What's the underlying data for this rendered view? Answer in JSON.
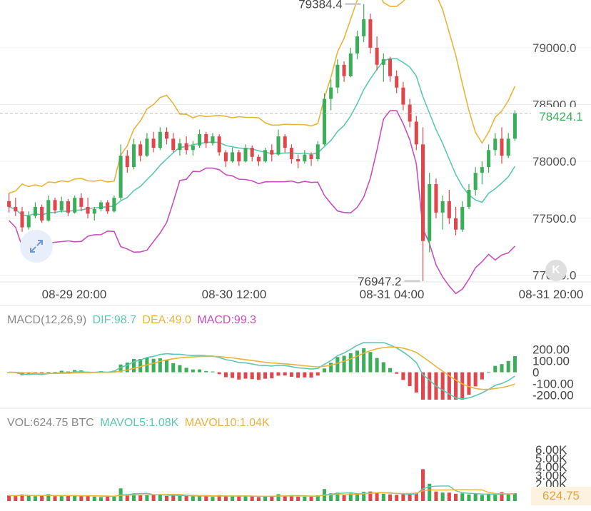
{
  "chart_data": {
    "type": "candlestick",
    "main": {
      "y_ticks": [
        "79000.0",
        "78500.0",
        "78000.0",
        "77500.0",
        "77000.0"
      ],
      "x_ticks": [
        "08-29 20:00",
        "08-30 12:00",
        "08-31 04:00",
        "08-31 20:00"
      ],
      "high_label": "79384.4",
      "low_label": "76947.2",
      "last_price": "78424.1",
      "ylim": [
        76940,
        79420
      ],
      "ohlc": [
        [
          77650,
          77720,
          77550,
          77600
        ],
        [
          77600,
          77680,
          77520,
          77560
        ],
        [
          77560,
          77600,
          77380,
          77420
        ],
        [
          77420,
          77560,
          77400,
          77520
        ],
        [
          77520,
          77640,
          77500,
          77600
        ],
        [
          77600,
          77620,
          77460,
          77480
        ],
        [
          77480,
          77700,
          77470,
          77660
        ],
        [
          77660,
          77680,
          77540,
          77570
        ],
        [
          77570,
          77690,
          77550,
          77650
        ],
        [
          77650,
          77670,
          77520,
          77550
        ],
        [
          77550,
          77700,
          77540,
          77680
        ],
        [
          77680,
          77720,
          77560,
          77600
        ],
        [
          77600,
          77680,
          77500,
          77540
        ],
        [
          77540,
          77600,
          77480,
          77580
        ],
        [
          77580,
          77660,
          77560,
          77640
        ],
        [
          77640,
          77660,
          77540,
          77560
        ],
        [
          77560,
          77700,
          77550,
          77680
        ],
        [
          77680,
          78150,
          77660,
          78050
        ],
        [
          78050,
          78100,
          77900,
          77950
        ],
        [
          77950,
          78200,
          77930,
          78150
        ],
        [
          78150,
          78180,
          78000,
          78050
        ],
        [
          78050,
          78250,
          78040,
          78200
        ],
        [
          78200,
          78260,
          78080,
          78120
        ],
        [
          78120,
          78300,
          78100,
          78260
        ],
        [
          78260,
          78300,
          78150,
          78200
        ],
        [
          78200,
          78250,
          78080,
          78100
        ],
        [
          78100,
          78200,
          78050,
          78160
        ],
        [
          78160,
          78220,
          78060,
          78100
        ],
        [
          78100,
          78180,
          78050,
          78140
        ],
        [
          78140,
          78280,
          78120,
          78240
        ],
        [
          78240,
          78260,
          78120,
          78160
        ],
        [
          78160,
          78250,
          78140,
          78220
        ],
        [
          78220,
          78240,
          78050,
          78080
        ],
        [
          78080,
          78100,
          77950,
          78000
        ],
        [
          78000,
          78120,
          77990,
          78080
        ],
        [
          78080,
          78100,
          77960,
          78000
        ],
        [
          78000,
          78150,
          77990,
          78120
        ],
        [
          78120,
          78140,
          78000,
          78040
        ],
        [
          78040,
          78060,
          77960,
          78000
        ],
        [
          78000,
          78120,
          77990,
          78100
        ],
        [
          78100,
          78150,
          78000,
          78060
        ],
        [
          78060,
          78280,
          78050,
          78220
        ],
        [
          78220,
          78240,
          78080,
          78120
        ],
        [
          78120,
          78150,
          77980,
          78020
        ],
        [
          78020,
          78060,
          77940,
          78000
        ],
        [
          78000,
          78100,
          77980,
          78060
        ],
        [
          78060,
          78080,
          77960,
          78020
        ],
        [
          78020,
          78180,
          78000,
          78150
        ],
        [
          78150,
          78600,
          78140,
          78550
        ],
        [
          78550,
          78720,
          78450,
          78650
        ],
        [
          78650,
          78900,
          78600,
          78850
        ],
        [
          78850,
          78880,
          78700,
          78750
        ],
        [
          78750,
          79000,
          78740,
          78950
        ],
        [
          78950,
          79150,
          78900,
          79100
        ],
        [
          79100,
          79384.4,
          79050,
          79250
        ],
        [
          79250,
          79300,
          78950,
          79000
        ],
        [
          79000,
          79100,
          78800,
          78850
        ],
        [
          78850,
          78950,
          78700,
          78900
        ],
        [
          78900,
          78920,
          78700,
          78750
        ],
        [
          78750,
          78800,
          78600,
          78650
        ],
        [
          78650,
          78700,
          78450,
          78500
        ],
        [
          78500,
          78550,
          78300,
          78350
        ],
        [
          78350,
          78400,
          78100,
          78150
        ],
        [
          78150,
          78300,
          76947.2,
          77300
        ],
        [
          77300,
          77900,
          77200,
          77800
        ],
        [
          77800,
          77850,
          77500,
          77550
        ],
        [
          77550,
          77700,
          77400,
          77650
        ],
        [
          77650,
          77750,
          77450,
          77500
        ],
        [
          77500,
          77600,
          77350,
          77400
        ],
        [
          77400,
          77650,
          77380,
          77600
        ],
        [
          77600,
          77800,
          77580,
          77750
        ],
        [
          77750,
          77950,
          77700,
          77900
        ],
        [
          77900,
          78000,
          77800,
          77950
        ],
        [
          77950,
          78150,
          77900,
          78100
        ],
        [
          78100,
          78250,
          78050,
          78200
        ],
        [
          78200,
          78300,
          77980,
          78050
        ],
        [
          78050,
          78250,
          78030,
          78200
        ],
        [
          78200,
          78450,
          78180,
          78424.1
        ]
      ]
    },
    "macd": {
      "label": "MACD(12,26,9)",
      "dif_label": "DIF:98.7",
      "dea_label": "DEA:49.0",
      "macd_label": "MACD:99.3",
      "y_ticks": [
        "200.00",
        "100.00",
        "0",
        "-100.00",
        "-200.00"
      ]
    },
    "volume": {
      "label": "VOL:624.75 BTC",
      "mavol5_label": "MAVOL5:1.08K",
      "mavol10_label": "MAVOL10:1.04K",
      "y_ticks": [
        "6.00K",
        "5.00K",
        "4.00K",
        "3.00K",
        "2.00K"
      ],
      "last_volume": "624.75",
      "ylim": [
        0,
        6000
      ]
    },
    "colors": {
      "up": "#3cae5a",
      "down": "#e0474c",
      "dif": "#5cc8b2",
      "dea": "#e9b43a",
      "macd": "#c94fbf",
      "grid": "#efefef"
    }
  },
  "buttons": {
    "right_button_label": "K"
  }
}
